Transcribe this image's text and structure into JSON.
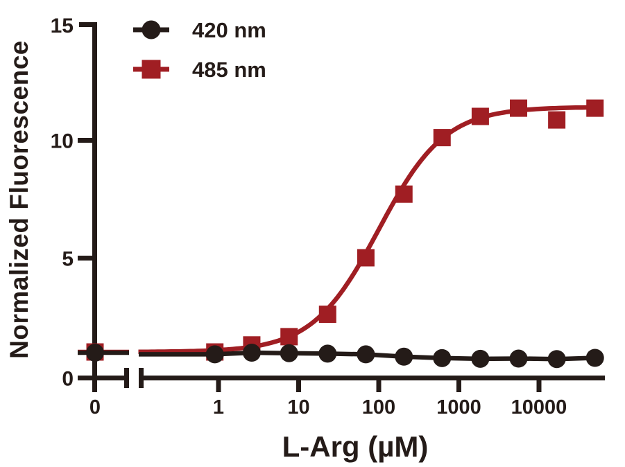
{
  "figure": {
    "background": "#FFFFFF",
    "axis_color": "#241B18",
    "text_color": "#241B18"
  },
  "chart_data": {
    "type": "scatter",
    "title": "",
    "xlabel": "L-Arg (µM)",
    "ylabel": "Normalized Fluorescence",
    "x_axis": {
      "scale": "log10",
      "broken_axis_zero_segment": true,
      "zero_tick_label": "0",
      "ticks": [
        1,
        10,
        100,
        1000,
        10000
      ],
      "tick_labels": [
        "1",
        "10",
        "100",
        "1000",
        "10000"
      ],
      "approx_range": [
        0.1,
        63000
      ]
    },
    "y_axis": {
      "ticks": [
        0,
        5,
        10,
        15
      ],
      "tick_labels": [
        "0",
        "5",
        "10",
        "15"
      ],
      "range": [
        0,
        15
      ],
      "grid": false
    },
    "legend": {
      "position": "inside-top-left",
      "entries": [
        "420 nm",
        "485 nm"
      ]
    },
    "series": [
      {
        "name": "485 nm",
        "color": "#A01E23",
        "marker": "square",
        "line": "sigmoid-fit",
        "fit": {
          "bottom": 1.0,
          "top": 11.4,
          "ec50": 100,
          "hill": 1.05
        },
        "x": [
          0,
          0.9,
          2.6,
          7.6,
          23,
          69,
          206,
          617,
          1852,
          5556,
          16667,
          50000
        ],
        "y": [
          1.0,
          1.0,
          1.3,
          1.65,
          2.6,
          5.0,
          7.7,
          10.1,
          11.0,
          11.35,
          10.85,
          11.35
        ]
      },
      {
        "name": "420 nm",
        "color": "#241B18",
        "marker": "circle",
        "line": "polyline",
        "x": [
          0,
          0.9,
          2.6,
          7.6,
          23,
          69,
          206,
          617,
          1852,
          5556,
          16667,
          50000
        ],
        "y": [
          0.97,
          0.9,
          0.97,
          0.95,
          0.93,
          0.9,
          0.8,
          0.74,
          0.71,
          0.72,
          0.7,
          0.75
        ]
      }
    ]
  }
}
